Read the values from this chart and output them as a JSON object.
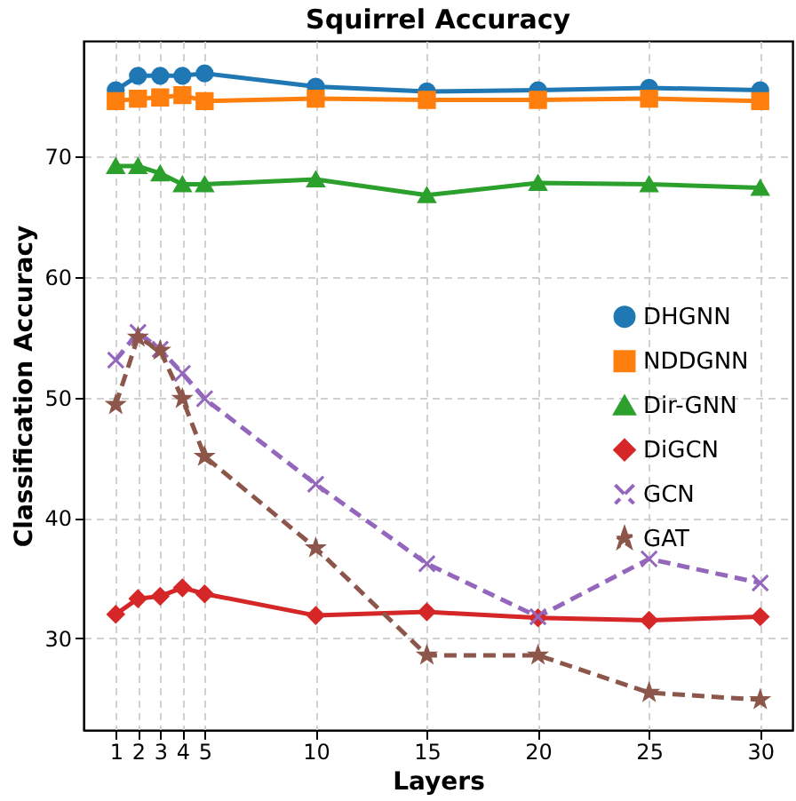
{
  "chart_data": {
    "type": "line",
    "title": "Squirrel Accuracy",
    "xlabel": "Layers",
    "ylabel": "Classification Accuracy",
    "x": [
      1,
      2,
      3,
      4,
      5,
      10,
      15,
      20,
      25,
      30
    ],
    "xlim": [
      -0.45,
      31.45
    ],
    "xticks": [
      1,
      2,
      3,
      4,
      5,
      10,
      15,
      20,
      25,
      30
    ],
    "ylim": [
      22.4,
      79.6
    ],
    "yticks": [
      30,
      40,
      50,
      60,
      70
    ],
    "grid": true,
    "legend": "right",
    "series": [
      {
        "name": "DHGNN",
        "color": "#1f77b4",
        "marker": "circle",
        "line_style": "solid",
        "values": [
          75.5,
          76.7,
          76.7,
          76.7,
          76.9,
          75.8,
          75.4,
          75.5,
          75.7,
          75.5
        ]
      },
      {
        "name": "NDDGNN",
        "color": "#ff7f0e",
        "marker": "square",
        "line_style": "solid",
        "values": [
          74.6,
          74.8,
          74.9,
          75.1,
          74.6,
          74.8,
          74.7,
          74.7,
          74.8,
          74.6
        ]
      },
      {
        "name": "Dir-GNN",
        "color": "#2ca02c",
        "marker": "triangle",
        "line_style": "solid",
        "values": [
          69.2,
          69.2,
          68.6,
          67.7,
          67.7,
          68.1,
          66.8,
          67.8,
          67.7,
          67.4
        ]
      },
      {
        "name": "DiGCN",
        "color": "#d62728",
        "marker": "diamond",
        "line_style": "solid",
        "values": [
          32.0,
          33.3,
          33.5,
          34.2,
          33.7,
          31.9,
          32.2,
          31.7,
          31.5,
          31.8
        ]
      },
      {
        "name": "GCN",
        "color": "#9467bd",
        "marker": "cross",
        "line_style": "dashed",
        "values": [
          53.1,
          55.4,
          54.0,
          52.0,
          49.9,
          42.8,
          36.2,
          31.8,
          36.6,
          34.6
        ]
      },
      {
        "name": "GAT",
        "color": "#8c564b",
        "marker": "star",
        "line_style": "dashed",
        "values": [
          49.4,
          55.0,
          53.9,
          49.9,
          45.1,
          37.5,
          28.6,
          28.6,
          25.5,
          24.9
        ]
      }
    ]
  }
}
